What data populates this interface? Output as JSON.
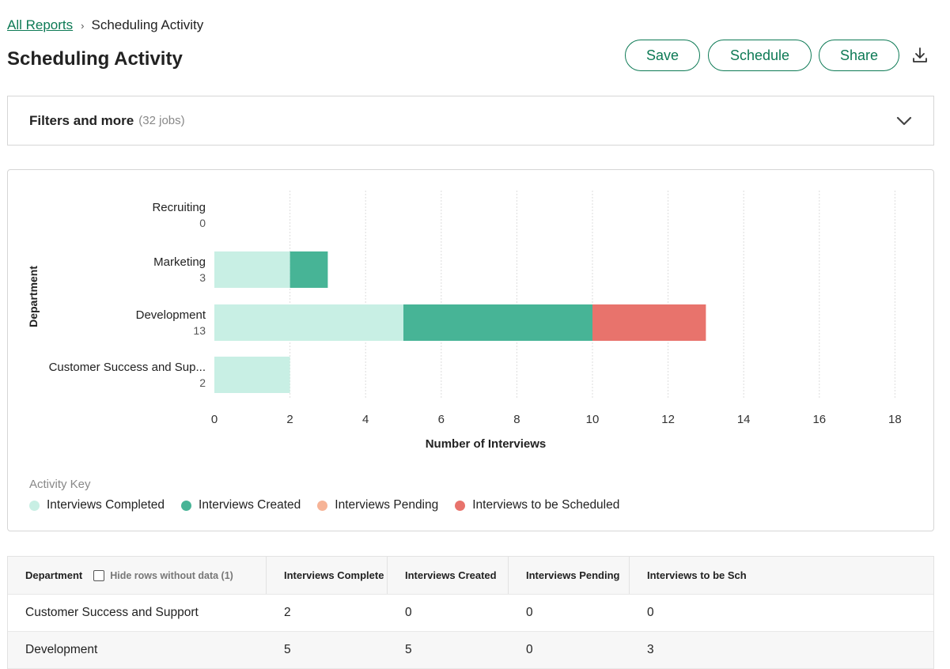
{
  "breadcrumb": {
    "parent": "All Reports",
    "separator": "›",
    "current": "Scheduling Activity"
  },
  "page": {
    "title": "Scheduling Activity"
  },
  "toolbar": {
    "save": "Save",
    "schedule": "Schedule",
    "share": "Share",
    "download_icon": "download-icon"
  },
  "filters": {
    "label": "Filters and more",
    "count": "(32 jobs)",
    "icon": "chevron-down-icon"
  },
  "colors": {
    "accent": "#0d7a55",
    "completed": "#c8efe4",
    "created": "#47b496",
    "pending": "#f6b396",
    "to_be_scheduled": "#e8736c"
  },
  "chart_data": {
    "type": "bar",
    "orientation": "horizontal",
    "stacked": true,
    "categories": [
      "Recruiting",
      "Marketing",
      "Development",
      "Customer Success and Sup..."
    ],
    "totals": [
      "0",
      "3",
      "13",
      "2"
    ],
    "series": [
      {
        "name": "Interviews Completed",
        "color": "#c8efe4",
        "values": [
          0,
          2,
          5,
          2
        ]
      },
      {
        "name": "Interviews Created",
        "color": "#47b496",
        "values": [
          0,
          1,
          5,
          0
        ]
      },
      {
        "name": "Interviews Pending",
        "color": "#f6b396",
        "values": [
          0,
          0,
          0,
          0
        ]
      },
      {
        "name": "Interviews to be Scheduled",
        "color": "#e8736c",
        "values": [
          0,
          0,
          3,
          0
        ]
      }
    ],
    "xticks": [
      "0",
      "2",
      "4",
      "6",
      "8",
      "10",
      "12",
      "14",
      "16",
      "18"
    ],
    "xlim": [
      0,
      18
    ],
    "xlabel": "Number of Interviews",
    "ylabel": "Department",
    "grid": "vertical dashed"
  },
  "legend": {
    "title": "Activity Key",
    "items": [
      {
        "label": "Interviews Completed",
        "color": "#c8efe4"
      },
      {
        "label": "Interviews Created",
        "color": "#47b496"
      },
      {
        "label": "Interviews Pending",
        "color": "#f6b396"
      },
      {
        "label": "Interviews to be Scheduled",
        "color": "#e8736c"
      }
    ]
  },
  "table": {
    "headers": {
      "department": "Department",
      "hide_rows": "Hide rows without data (1)",
      "completed": "Interviews Completed",
      "created": "Interviews Created",
      "pending": "Interviews Pending",
      "to_be_scheduled": "Interviews to be Scheduled"
    },
    "rows": [
      {
        "department": "Customer Success and Support",
        "completed": "2",
        "created": "0",
        "pending": "0",
        "to_be_scheduled": "0"
      },
      {
        "department": "Development",
        "completed": "5",
        "created": "5",
        "pending": "0",
        "to_be_scheduled": "3"
      }
    ]
  }
}
